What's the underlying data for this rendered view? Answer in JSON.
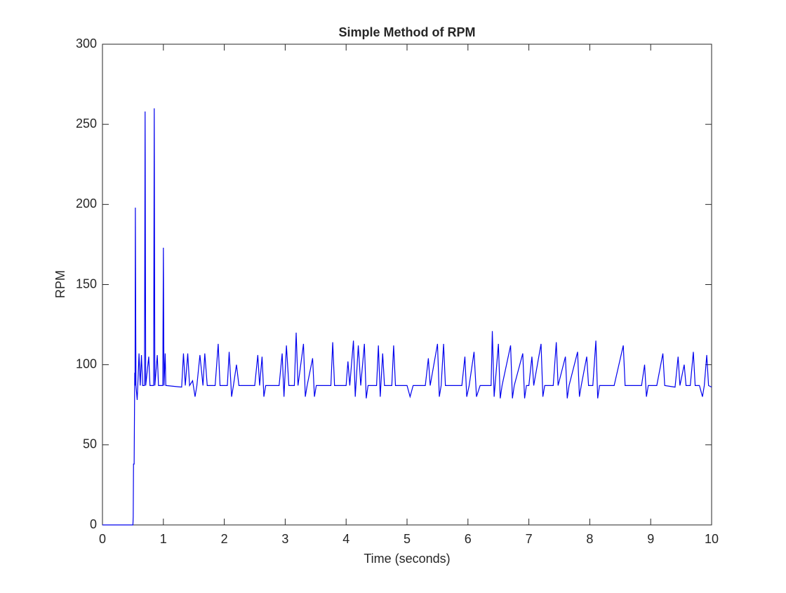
{
  "chart_data": {
    "type": "line",
    "title": "Simple Method of RPM",
    "x_label": "Time (seconds)",
    "y_label": "RPM",
    "x": [
      0,
      0.5,
      0.505,
      0.51,
      0.52,
      0.53,
      0.535,
      0.54,
      0.55,
      0.57,
      0.58,
      0.6,
      0.62,
      0.64,
      0.66,
      0.69,
      0.7,
      0.71,
      0.76,
      0.78,
      0.84,
      0.85,
      0.86,
      0.9,
      0.92,
      0.99,
      1.0,
      1.01,
      1.03,
      1.04,
      1.05,
      1.3,
      1.33,
      1.36,
      1.4,
      1.43,
      1.48,
      1.52,
      1.55,
      1.6,
      1.65,
      1.68,
      1.72,
      1.85,
      1.9,
      1.93,
      2.05,
      2.08,
      2.12,
      2.15,
      2.2,
      2.24,
      2.5,
      2.55,
      2.58,
      2.62,
      2.65,
      2.68,
      2.9,
      2.95,
      2.98,
      3.02,
      3.06,
      3.15,
      3.18,
      3.21,
      3.3,
      3.33,
      3.36,
      3.45,
      3.48,
      3.51,
      3.75,
      3.78,
      3.81,
      4.0,
      4.03,
      4.06,
      4.12,
      4.15,
      4.2,
      4.24,
      4.3,
      4.33,
      4.36,
      4.5,
      4.53,
      4.56,
      4.6,
      4.63,
      4.75,
      4.78,
      4.81,
      5.0,
      5.05,
      5.1,
      5.3,
      5.35,
      5.38,
      5.5,
      5.53,
      5.56,
      5.6,
      5.63,
      5.9,
      5.95,
      5.98,
      6.02,
      6.1,
      6.14,
      6.2,
      6.38,
      6.4,
      6.43,
      6.5,
      6.53,
      6.56,
      6.7,
      6.73,
      6.76,
      6.9,
      6.93,
      6.96,
      7.0,
      7.05,
      7.08,
      7.2,
      7.23,
      7.26,
      7.4,
      7.45,
      7.48,
      7.6,
      7.63,
      7.66,
      7.8,
      7.83,
      7.86,
      7.95,
      7.98,
      8.05,
      8.1,
      8.13,
      8.16,
      8.3,
      8.4,
      8.55,
      8.58,
      8.7,
      8.85,
      8.9,
      8.93,
      8.96,
      9.1,
      9.2,
      9.23,
      9.4,
      9.45,
      9.48,
      9.55,
      9.58,
      9.65,
      9.7,
      9.73,
      9.8,
      9.85,
      9.88,
      9.92,
      9.95,
      10
    ],
    "values": [
      0,
      0,
      5,
      38,
      38,
      95,
      87,
      198,
      87,
      78,
      87,
      107,
      87,
      106,
      87,
      87,
      258,
      87,
      105,
      87,
      87,
      260,
      87,
      106,
      87,
      87,
      173,
      87,
      107,
      87,
      87,
      86,
      107,
      87,
      107,
      87,
      90,
      80,
      87,
      106,
      87,
      107,
      87,
      87,
      113,
      87,
      87,
      108,
      80,
      87,
      100,
      87,
      87,
      106,
      87,
      105,
      80,
      87,
      87,
      107,
      80,
      112,
      87,
      87,
      120,
      87,
      113,
      80,
      87,
      104,
      80,
      87,
      87,
      114,
      87,
      87,
      102,
      87,
      115,
      80,
      112,
      87,
      113,
      79,
      87,
      87,
      112,
      80,
      107,
      87,
      87,
      112,
      87,
      87,
      80,
      87,
      87,
      104,
      87,
      113,
      80,
      87,
      113,
      87,
      87,
      105,
      80,
      87,
      108,
      80,
      87,
      87,
      121,
      80,
      113,
      79,
      87,
      112,
      79,
      87,
      107,
      79,
      87,
      87,
      105,
      87,
      113,
      80,
      87,
      87,
      114,
      87,
      105,
      79,
      87,
      108,
      80,
      87,
      105,
      87,
      87,
      115,
      79,
      87,
      87,
      87,
      112,
      87,
      87,
      87,
      100,
      80,
      87,
      87,
      107,
      87,
      86,
      105,
      87,
      100,
      87,
      87,
      108,
      87,
      87,
      80,
      87,
      106,
      87,
      86
    ],
    "color": "#0000ee",
    "xlim": [
      0,
      10
    ],
    "xticks": [
      0,
      1,
      2,
      3,
      4,
      5,
      6,
      7,
      8,
      9,
      10
    ],
    "ylim": [
      0,
      300
    ],
    "yticks": [
      0,
      50,
      100,
      150,
      200,
      250,
      300
    ],
    "grid": false
  }
}
